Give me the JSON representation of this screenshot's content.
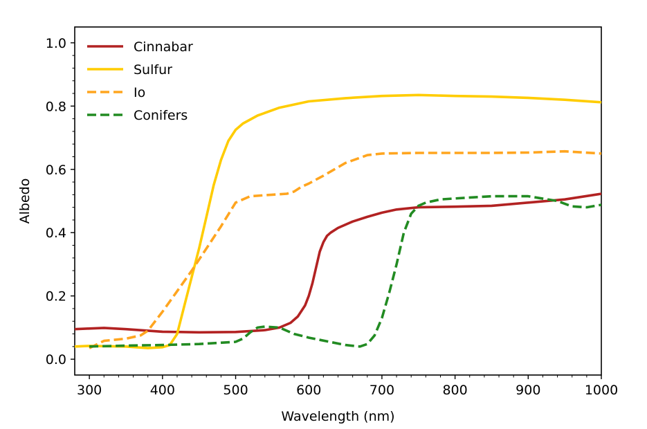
{
  "chart_data": {
    "type": "line",
    "title": "",
    "xlabel": "Wavelength (nm)",
    "ylabel": "Albedo",
    "xlim": [
      280,
      1000
    ],
    "ylim": [
      -0.05,
      1.05
    ],
    "xticks": [
      300,
      400,
      500,
      600,
      700,
      800,
      900,
      1000
    ],
    "yticks": [
      0.0,
      0.2,
      0.4,
      0.6,
      0.8,
      1.0
    ],
    "grid": false,
    "legend_position": "top-left",
    "series": [
      {
        "name": "Cinnabar",
        "color": "#b22222",
        "style": "solid",
        "x": [
          280,
          300,
          320,
          350,
          400,
          450,
          500,
          540,
          560,
          575,
          585,
          595,
          600,
          605,
          610,
          615,
          620,
          625,
          630,
          640,
          660,
          680,
          700,
          720,
          750,
          800,
          850,
          900,
          950,
          1000
        ],
        "y": [
          0.095,
          0.097,
          0.099,
          0.095,
          0.087,
          0.085,
          0.086,
          0.092,
          0.1,
          0.115,
          0.135,
          0.17,
          0.2,
          0.24,
          0.29,
          0.34,
          0.37,
          0.39,
          0.4,
          0.415,
          0.435,
          0.45,
          0.463,
          0.473,
          0.48,
          0.482,
          0.485,
          0.495,
          0.505,
          0.523
        ]
      },
      {
        "name": "Sulfur",
        "color": "#ffcc00",
        "style": "solid",
        "x": [
          280,
          300,
          350,
          380,
          400,
          410,
          420,
          430,
          440,
          450,
          460,
          470,
          480,
          490,
          500,
          510,
          530,
          560,
          600,
          650,
          700,
          750,
          800,
          850,
          900,
          950,
          1000
        ],
        "y": [
          0.04,
          0.042,
          0.04,
          0.035,
          0.038,
          0.045,
          0.08,
          0.17,
          0.26,
          0.35,
          0.45,
          0.55,
          0.63,
          0.69,
          0.725,
          0.745,
          0.77,
          0.795,
          0.815,
          0.825,
          0.832,
          0.835,
          0.832,
          0.83,
          0.826,
          0.82,
          0.812
        ]
      },
      {
        "name": "Io",
        "color": "#ffa51f",
        "style": "dashed",
        "x": [
          300,
          320,
          350,
          370,
          380,
          400,
          420,
          440,
          460,
          480,
          500,
          520,
          550,
          570,
          580,
          590,
          600,
          620,
          650,
          680,
          700,
          750,
          800,
          850,
          900,
          950,
          1000
        ],
        "y": [
          0.035,
          0.058,
          0.065,
          0.075,
          0.09,
          0.15,
          0.215,
          0.28,
          0.35,
          0.42,
          0.495,
          0.515,
          0.52,
          0.523,
          0.53,
          0.545,
          0.555,
          0.58,
          0.62,
          0.645,
          0.65,
          0.652,
          0.652,
          0.652,
          0.653,
          0.657,
          0.65
        ]
      },
      {
        "name": "Conifers",
        "color": "#228b22",
        "style": "dashed",
        "x": [
          300,
          350,
          400,
          450,
          500,
          510,
          520,
          530,
          540,
          560,
          580,
          600,
          650,
          670,
          680,
          690,
          700,
          710,
          720,
          730,
          740,
          750,
          760,
          780,
          800,
          850,
          900,
          940,
          960,
          980,
          1000
        ],
        "y": [
          0.04,
          0.043,
          0.045,
          0.048,
          0.055,
          0.065,
          0.085,
          0.1,
          0.103,
          0.1,
          0.08,
          0.068,
          0.045,
          0.04,
          0.048,
          0.075,
          0.13,
          0.21,
          0.3,
          0.4,
          0.46,
          0.485,
          0.495,
          0.505,
          0.508,
          0.515,
          0.515,
          0.5,
          0.483,
          0.48,
          0.488
        ]
      }
    ]
  }
}
